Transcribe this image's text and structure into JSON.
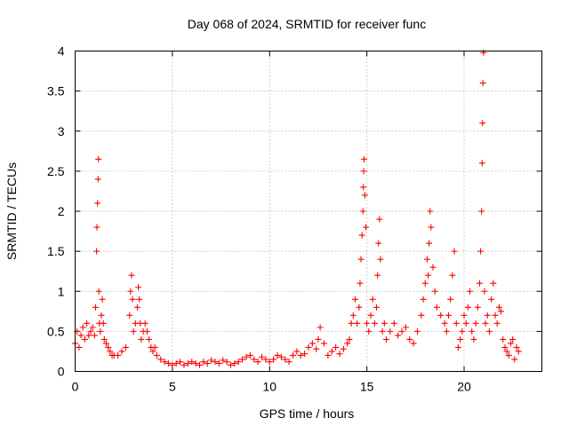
{
  "chart_data": {
    "type": "scatter",
    "title": "Day 068 of 2024, SRMTID for receiver func",
    "xlabel": "GPS time / hours",
    "ylabel": "SRMTID / TECUs",
    "xlim": [
      0,
      24
    ],
    "ylim": [
      0,
      4
    ],
    "xticks": [
      0,
      5,
      10,
      15,
      20
    ],
    "xtick_labels": [
      "0",
      "5",
      "10",
      "15",
      "20"
    ],
    "yticks": [
      0,
      0.5,
      1,
      1.5,
      2,
      2.5,
      3,
      3.5,
      4
    ],
    "ytick_labels": [
      "0",
      "0.5",
      "1",
      "1.5",
      "2",
      "2.5",
      "3",
      "3.5",
      "4"
    ],
    "grid": true,
    "marker": "+",
    "color": "#ff0000",
    "series": [
      {
        "name": "SRMTID",
        "x": [
          0.0,
          0.1,
          0.2,
          0.3,
          0.4,
          0.5,
          0.6,
          0.7,
          0.8,
          0.9,
          1.0,
          1.05,
          1.1,
          1.12,
          1.15,
          1.18,
          1.2,
          1.22,
          1.25,
          1.3,
          1.35,
          1.4,
          1.45,
          1.5,
          1.6,
          1.7,
          1.8,
          1.9,
          2.0,
          2.2,
          2.4,
          2.6,
          2.8,
          2.85,
          2.9,
          2.95,
          3.0,
          3.1,
          3.2,
          3.25,
          3.3,
          3.35,
          3.4,
          3.5,
          3.6,
          3.7,
          3.8,
          3.9,
          4.0,
          4.1,
          4.2,
          4.4,
          4.6,
          4.8,
          5.0,
          5.2,
          5.4,
          5.6,
          5.8,
          6.0,
          6.2,
          6.4,
          6.6,
          6.8,
          7.0,
          7.2,
          7.4,
          7.6,
          7.8,
          8.0,
          8.2,
          8.4,
          8.6,
          8.8,
          9.0,
          9.2,
          9.4,
          9.6,
          9.8,
          10.0,
          10.2,
          10.4,
          10.6,
          10.8,
          11.0,
          11.2,
          11.4,
          11.6,
          11.8,
          12.0,
          12.2,
          12.4,
          12.5,
          12.6,
          12.8,
          13.0,
          13.2,
          13.4,
          13.6,
          13.8,
          14.0,
          14.1,
          14.2,
          14.3,
          14.4,
          14.5,
          14.6,
          14.65,
          14.7,
          14.75,
          14.8,
          14.82,
          14.84,
          14.86,
          14.9,
          14.95,
          15.0,
          15.1,
          15.2,
          15.3,
          15.4,
          15.5,
          15.55,
          15.6,
          15.65,
          15.7,
          15.8,
          15.9,
          16.0,
          16.2,
          16.4,
          16.6,
          16.8,
          17.0,
          17.2,
          17.4,
          17.6,
          17.8,
          17.9,
          18.0,
          18.1,
          18.15,
          18.2,
          18.25,
          18.3,
          18.4,
          18.5,
          18.6,
          18.8,
          19.0,
          19.1,
          19.2,
          19.3,
          19.4,
          19.5,
          19.6,
          19.7,
          19.8,
          19.9,
          20.0,
          20.1,
          20.2,
          20.3,
          20.4,
          20.5,
          20.6,
          20.7,
          20.8,
          20.85,
          20.9,
          20.93,
          20.95,
          20.97,
          21.0,
          21.05,
          21.1,
          21.2,
          21.3,
          21.4,
          21.5,
          21.6,
          21.7,
          21.8,
          21.9,
          22.0,
          22.1,
          22.2,
          22.3,
          22.4,
          22.5,
          22.6,
          22.7,
          22.8
        ],
        "y": [
          0.35,
          0.5,
          0.3,
          0.45,
          0.55,
          0.4,
          0.6,
          0.45,
          0.5,
          0.55,
          0.45,
          0.8,
          1.5,
          1.8,
          2.1,
          2.4,
          2.65,
          1.0,
          0.6,
          0.5,
          0.7,
          0.9,
          0.6,
          0.4,
          0.35,
          0.3,
          0.25,
          0.2,
          0.2,
          0.2,
          0.25,
          0.3,
          0.7,
          1.0,
          1.2,
          0.9,
          0.5,
          0.6,
          0.8,
          1.05,
          0.9,
          0.6,
          0.4,
          0.5,
          0.6,
          0.5,
          0.4,
          0.3,
          0.25,
          0.3,
          0.2,
          0.15,
          0.12,
          0.1,
          0.08,
          0.1,
          0.12,
          0.08,
          0.1,
          0.12,
          0.1,
          0.08,
          0.12,
          0.1,
          0.14,
          0.12,
          0.1,
          0.14,
          0.12,
          0.08,
          0.1,
          0.12,
          0.15,
          0.18,
          0.2,
          0.15,
          0.12,
          0.18,
          0.15,
          0.12,
          0.15,
          0.2,
          0.18,
          0.15,
          0.12,
          0.2,
          0.25,
          0.2,
          0.22,
          0.3,
          0.35,
          0.28,
          0.4,
          0.55,
          0.35,
          0.2,
          0.25,
          0.3,
          0.22,
          0.28,
          0.35,
          0.4,
          0.6,
          0.7,
          0.9,
          0.6,
          0.8,
          1.1,
          1.4,
          1.7,
          2.0,
          2.3,
          2.5,
          2.65,
          2.2,
          1.8,
          0.6,
          0.5,
          0.7,
          0.9,
          0.6,
          0.8,
          1.2,
          1.6,
          1.9,
          1.4,
          0.5,
          0.6,
          0.4,
          0.5,
          0.6,
          0.45,
          0.5,
          0.55,
          0.4,
          0.35,
          0.5,
          0.7,
          0.9,
          1.1,
          1.4,
          1.2,
          1.6,
          2.0,
          1.8,
          1.3,
          1.0,
          0.8,
          0.7,
          0.6,
          0.5,
          0.7,
          0.9,
          1.2,
          1.5,
          0.6,
          0.3,
          0.4,
          0.5,
          0.7,
          0.6,
          0.8,
          1.0,
          0.5,
          0.4,
          0.6,
          0.8,
          1.1,
          1.5,
          2.0,
          2.6,
          3.1,
          3.6,
          3.98,
          1.0,
          0.6,
          0.7,
          0.5,
          0.9,
          1.1,
          0.7,
          0.6,
          0.8,
          0.75,
          0.4,
          0.3,
          0.25,
          0.2,
          0.35,
          0.4,
          0.15,
          0.3,
          0.25
        ]
      }
    ]
  }
}
